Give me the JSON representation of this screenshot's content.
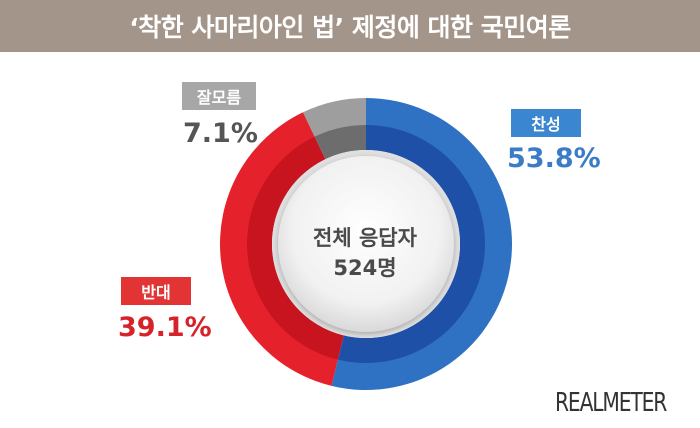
{
  "header": {
    "title": "‘착한 사마리아인 법’ 제정에 대한 국민여론"
  },
  "brand": {
    "logo_text": "REALMETER"
  },
  "chart_data": {
    "type": "pie",
    "variant": "donut",
    "center_label": "전체 응답자",
    "center_value": "524명",
    "slices": [
      {
        "label": "찬성",
        "value": 53.8,
        "value_label": "53.8%",
        "color": "#2f72c3",
        "inner_color": "#1f50a8"
      },
      {
        "label": "반대",
        "value": 39.1,
        "value_label": "39.1%",
        "color": "#e5222b",
        "inner_color": "#c8141f"
      },
      {
        "label": "잘모름",
        "value": 7.1,
        "value_label": "7.1%",
        "color": "#9e9e9e",
        "inner_color": "#6d6d6d"
      }
    ]
  },
  "colors": {
    "title_bar": "#a3958a",
    "pct_agree": "#3a7cc6",
    "pct_disagree": "#d8222a",
    "pct_unknown": "#555555",
    "box_agree": "#3a86d1",
    "box_disagree": "#e23434",
    "box_unknown": "#a7a7a7"
  }
}
